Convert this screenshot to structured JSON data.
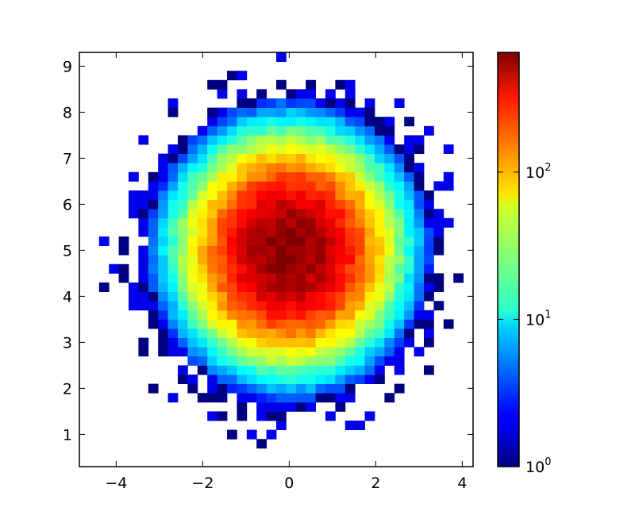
{
  "chart_data": {
    "type": "heatmap",
    "title": "",
    "xlabel": "",
    "ylabel": "",
    "xlim": [
      -4.85,
      4.25
    ],
    "ylim": [
      0.3,
      9.3
    ],
    "xticks": [
      -4,
      -2,
      0,
      2,
      4
    ],
    "xtick_labels": [
      "−4",
      "−2",
      "0",
      "2",
      "4"
    ],
    "yticks": [
      1,
      2,
      3,
      4,
      5,
      6,
      7,
      8,
      9
    ],
    "ytick_labels": [
      "1",
      "2",
      "3",
      "4",
      "5",
      "6",
      "7",
      "8",
      "9"
    ],
    "bins": {
      "x_edges_start": -4.85,
      "x_bin_width": 0.2275,
      "x_bins": 40,
      "y_edges_start": 0.3,
      "y_bin_width": 0.2,
      "y_bins": 45
    },
    "distribution": {
      "x_center": 0.0,
      "y_center": 5.0,
      "x_std": 1.0,
      "y_std": 1.0,
      "peak_count": 650
    },
    "colormap": "jet",
    "color_scale": "log",
    "grid": false,
    "colorbar": {
      "min": 1,
      "max": 650,
      "ticks": [
        {
          "value": 1,
          "base": "10",
          "exp": "0"
        },
        {
          "value": 10,
          "base": "10",
          "exp": "1"
        },
        {
          "value": 100,
          "base": "10",
          "exp": "2"
        }
      ]
    },
    "colors": {
      "background": "#ffffff",
      "axis": "#000000"
    }
  }
}
